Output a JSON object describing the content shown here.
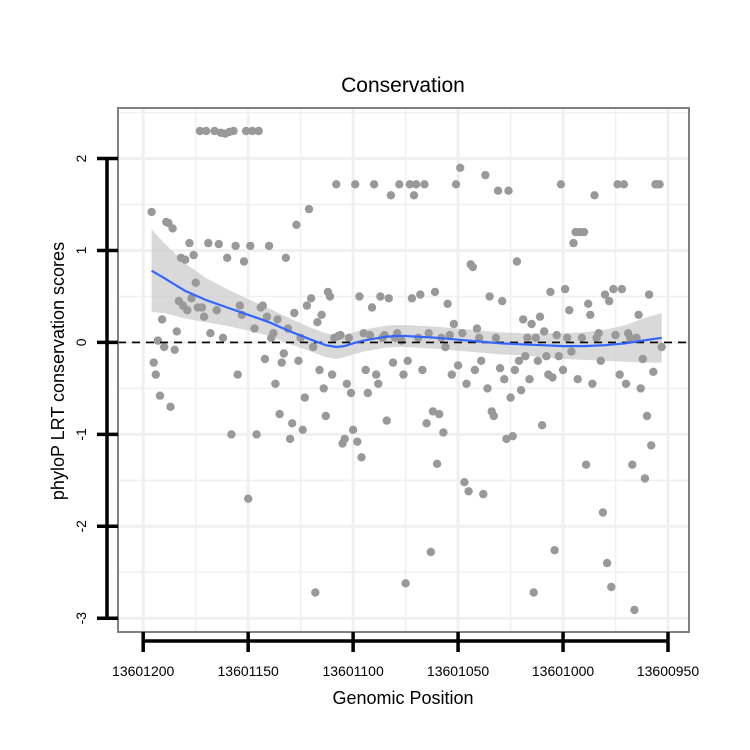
{
  "chart_data": {
    "type": "scatter",
    "title": "Conservation",
    "xlabel": "Genomic Position",
    "ylabel": "phyloP LRT conservation scores",
    "x_reversed": true,
    "xlim": [
      13601212,
      13600940
    ],
    "ylim": [
      -3.15,
      2.55
    ],
    "xticks": [
      13601200,
      13601150,
      13601100,
      13601050,
      13601000,
      13600950
    ],
    "xtick_labels": [
      "13601200",
      "13601150",
      "13601100",
      "13601050",
      "13601000",
      "13600950"
    ],
    "yticks": [
      -3,
      -2,
      -1,
      0,
      1,
      2
    ],
    "ytick_labels": [
      "-3",
      "-2",
      "-1",
      "0",
      "1",
      "2"
    ],
    "reference_line_y": 0,
    "grid": true,
    "colors": {
      "points": "#999999",
      "smooth_line": "#3366FF",
      "confidence_band": "#cccccc",
      "panel_border": "#808080",
      "grid": "#f0f0f0"
    },
    "points": [
      [
        13601196,
        1.42
      ],
      [
        13601195,
        -0.22
      ],
      [
        13601194,
        -0.35
      ],
      [
        13601193,
        0.02
      ],
      [
        13601192,
        -0.58
      ],
      [
        13601191,
        0.25
      ],
      [
        13601190,
        -0.05
      ],
      [
        13601189,
        1.31
      ],
      [
        13601188,
        1.3
      ],
      [
        13601187,
        -0.7
      ],
      [
        13601186,
        1.24
      ],
      [
        13601185,
        -0.08
      ],
      [
        13601184,
        0.12
      ],
      [
        13601183,
        0.45
      ],
      [
        13601182,
        0.92
      ],
      [
        13601181,
        0.4
      ],
      [
        13601180,
        0.9
      ],
      [
        13601179,
        0.35
      ],
      [
        13601178,
        1.08
      ],
      [
        13601177,
        0.48
      ],
      [
        13601176,
        0.95
      ],
      [
        13601175,
        0.65
      ],
      [
        13601174,
        0.38
      ],
      [
        13601173,
        2.3
      ],
      [
        13601172,
        0.38
      ],
      [
        13601171,
        0.28
      ],
      [
        13601170,
        2.3
      ],
      [
        13601169,
        1.08
      ],
      [
        13601168,
        0.1
      ],
      [
        13601166,
        2.3
      ],
      [
        13601165,
        0.35
      ],
      [
        13601164,
        1.07
      ],
      [
        13601163,
        2.28
      ],
      [
        13601162,
        0.05
      ],
      [
        13601161,
        2.27
      ],
      [
        13601160,
        0.92
      ],
      [
        13601159,
        2.29
      ],
      [
        13601158,
        -1.0
      ],
      [
        13601157,
        2.3
      ],
      [
        13601156,
        1.05
      ],
      [
        13601155,
        -0.35
      ],
      [
        13601154,
        0.4
      ],
      [
        13601153,
        0.3
      ],
      [
        13601152,
        0.88
      ],
      [
        13601151,
        2.3
      ],
      [
        13601150,
        -1.7
      ],
      [
        13601149,
        1.05
      ],
      [
        13601148,
        2.3
      ],
      [
        13601147,
        0.15
      ],
      [
        13601146,
        -1.0
      ],
      [
        13601145,
        2.3
      ],
      [
        13601144,
        0.38
      ],
      [
        13601143,
        0.4
      ],
      [
        13601142,
        -0.18
      ],
      [
        13601141,
        0.28
      ],
      [
        13601140,
        1.05
      ],
      [
        13601139,
        0.05
      ],
      [
        13601138,
        0.1
      ],
      [
        13601137,
        -0.45
      ],
      [
        13601136,
        0.25
      ],
      [
        13601135,
        -0.78
      ],
      [
        13601134,
        -0.22
      ],
      [
        13601133,
        -0.12
      ],
      [
        13601132,
        0.92
      ],
      [
        13601131,
        0.15
      ],
      [
        13601130,
        -1.05
      ],
      [
        13601129,
        -0.88
      ],
      [
        13601128,
        0.32
      ],
      [
        13601127,
        1.28
      ],
      [
        13601126,
        -0.2
      ],
      [
        13601125,
        0.05
      ],
      [
        13601124,
        -0.95
      ],
      [
        13601123,
        -0.6
      ],
      [
        13601122,
        0.4
      ],
      [
        13601121,
        1.45
      ],
      [
        13601120,
        0.48
      ],
      [
        13601119,
        -0.05
      ],
      [
        13601118,
        -2.72
      ],
      [
        13601117,
        0.22
      ],
      [
        13601116,
        -0.3
      ],
      [
        13601115,
        0.3
      ],
      [
        13601114,
        -0.5
      ],
      [
        13601113,
        -0.8
      ],
      [
        13601112,
        0.55
      ],
      [
        13601111,
        0.5
      ],
      [
        13601110,
        -0.35
      ],
      [
        13601109,
        0.05
      ],
      [
        13601108,
        1.72
      ],
      [
        13601107,
        0.07
      ],
      [
        13601106,
        0.08
      ],
      [
        13601105,
        -1.1
      ],
      [
        13601104,
        -1.05
      ],
      [
        13601103,
        -0.45
      ],
      [
        13601102,
        0.05
      ],
      [
        13601101,
        -0.55
      ],
      [
        13601100,
        -0.95
      ],
      [
        13601099,
        1.72
      ],
      [
        13601098,
        -1.08
      ],
      [
        13601097,
        0.5
      ],
      [
        13601096,
        -1.25
      ],
      [
        13601095,
        0.1
      ],
      [
        13601094,
        -0.3
      ],
      [
        13601093,
        -0.55
      ],
      [
        13601092,
        0.08
      ],
      [
        13601091,
        0.38
      ],
      [
        13601090,
        1.72
      ],
      [
        13601089,
        -0.35
      ],
      [
        13601088,
        -0.45
      ],
      [
        13601087,
        0.5
      ],
      [
        13601086,
        0.05
      ],
      [
        13601085,
        0.08
      ],
      [
        13601084,
        -0.85
      ],
      [
        13601083,
        0.48
      ],
      [
        13601082,
        1.6
      ],
      [
        13601081,
        -0.22
      ],
      [
        13601080,
        0.05
      ],
      [
        13601079,
        0.1
      ],
      [
        13601078,
        1.72
      ],
      [
        13601077,
        0.02
      ],
      [
        13601076,
        -0.35
      ],
      [
        13601075,
        -2.62
      ],
      [
        13601074,
        -0.2
      ],
      [
        13601073,
        1.72
      ],
      [
        13601072,
        0.48
      ],
      [
        13601071,
        1.6
      ],
      [
        13601070,
        1.72
      ],
      [
        13601069,
        0.05
      ],
      [
        13601068,
        0.52
      ],
      [
        13601067,
        -0.3
      ],
      [
        13601066,
        1.72
      ],
      [
        13601065,
        -0.88
      ],
      [
        13601064,
        0.1
      ],
      [
        13601063,
        -2.28
      ],
      [
        13601062,
        -0.75
      ],
      [
        13601061,
        0.55
      ],
      [
        13601060,
        -1.32
      ],
      [
        13601059,
        -0.78
      ],
      [
        13601058,
        0.05
      ],
      [
        13601057,
        -0.98
      ],
      [
        13601056,
        -0.05
      ],
      [
        13601055,
        0.42
      ],
      [
        13601054,
        0.08
      ],
      [
        13601053,
        -0.35
      ],
      [
        13601052,
        0.2
      ],
      [
        13601051,
        1.72
      ],
      [
        13601050,
        -0.25
      ],
      [
        13601049,
        1.9
      ],
      [
        13601048,
        0.1
      ],
      [
        13601047,
        -1.52
      ],
      [
        13601046,
        -0.45
      ],
      [
        13601045,
        -1.62
      ],
      [
        13601044,
        0.85
      ],
      [
        13601043,
        0.82
      ],
      [
        13601042,
        -0.3
      ],
      [
        13601041,
        0.15
      ],
      [
        13601040,
        0.05
      ],
      [
        13601039,
        -0.2
      ],
      [
        13601038,
        -1.65
      ],
      [
        13601037,
        1.82
      ],
      [
        13601036,
        -0.5
      ],
      [
        13601035,
        0.5
      ],
      [
        13601034,
        -0.75
      ],
      [
        13601033,
        -0.8
      ],
      [
        13601032,
        0.05
      ],
      [
        13601031,
        1.65
      ],
      [
        13601030,
        -0.28
      ],
      [
        13601029,
        0.45
      ],
      [
        13601028,
        -0.4
      ],
      [
        13601027,
        -1.05
      ],
      [
        13601026,
        1.65
      ],
      [
        13601025,
        -0.6
      ],
      [
        13601024,
        -1.02
      ],
      [
        13601023,
        -0.3
      ],
      [
        13601022,
        0.88
      ],
      [
        13601021,
        -0.2
      ],
      [
        13601020,
        -0.52
      ],
      [
        13601019,
        0.25
      ],
      [
        13601018,
        -0.15
      ],
      [
        13601017,
        0.05
      ],
      [
        13601016,
        -0.4
      ],
      [
        13601015,
        0.2
      ],
      [
        13601014,
        -2.72
      ],
      [
        13601013,
        0.05
      ],
      [
        13601012,
        -0.2
      ],
      [
        13601011,
        0.28
      ],
      [
        13601010,
        -0.9
      ],
      [
        13601009,
        0.12
      ],
      [
        13601008,
        -0.15
      ],
      [
        13601007,
        -0.35
      ],
      [
        13601006,
        0.55
      ],
      [
        13601005,
        -0.38
      ],
      [
        13601004,
        -2.26
      ],
      [
        13601003,
        0.08
      ],
      [
        13601002,
        -0.15
      ],
      [
        13601001,
        1.72
      ],
      [
        13601000,
        -0.3
      ],
      [
        13600999,
        0.58
      ],
      [
        13600998,
        0.05
      ],
      [
        13600997,
        0.35
      ],
      [
        13600996,
        -0.1
      ],
      [
        13600995,
        1.08
      ],
      [
        13600994,
        1.2
      ],
      [
        13600993,
        -0.4
      ],
      [
        13600992,
        1.2
      ],
      [
        13600991,
        0.05
      ],
      [
        13600990,
        1.2
      ],
      [
        13600989,
        -1.33
      ],
      [
        13600988,
        0.42
      ],
      [
        13600987,
        0.3
      ],
      [
        13600986,
        -0.45
      ],
      [
        13600985,
        1.6
      ],
      [
        13600984,
        0.05
      ],
      [
        13600983,
        0.1
      ],
      [
        13600982,
        -0.2
      ],
      [
        13600981,
        -1.85
      ],
      [
        13600980,
        0.52
      ],
      [
        13600979,
        -2.4
      ],
      [
        13600978,
        0.45
      ],
      [
        13600977,
        -2.66
      ],
      [
        13600976,
        0.58
      ],
      [
        13600975,
        0.08
      ],
      [
        13600974,
        1.72
      ],
      [
        13600973,
        -0.35
      ],
      [
        13600972,
        0.58
      ],
      [
        13600971,
        1.72
      ],
      [
        13600970,
        -0.45
      ],
      [
        13600969,
        0.1
      ],
      [
        13600968,
        0.05
      ],
      [
        13600967,
        -1.33
      ],
      [
        13600966,
        -2.91
      ],
      [
        13600965,
        0.05
      ],
      [
        13600964,
        0.3
      ],
      [
        13600963,
        -0.5
      ],
      [
        13600962,
        -0.18
      ],
      [
        13600961,
        -1.48
      ],
      [
        13600960,
        -0.8
      ],
      [
        13600959,
        0.52
      ],
      [
        13600958,
        -1.12
      ],
      [
        13600957,
        -0.32
      ],
      [
        13600956,
        1.72
      ],
      [
        13600955,
        1.72
      ],
      [
        13600954,
        1.72
      ],
      [
        13600953,
        -0.05
      ]
    ],
    "smooth": [
      [
        13601196,
        0.78
      ],
      [
        13601190,
        0.7
      ],
      [
        13601180,
        0.56
      ],
      [
        13601170,
        0.46
      ],
      [
        13601160,
        0.38
      ],
      [
        13601150,
        0.3
      ],
      [
        13601140,
        0.22
      ],
      [
        13601130,
        0.12
      ],
      [
        13601120,
        0.03
      ],
      [
        13601113,
        -0.03
      ],
      [
        13601108,
        -0.05
      ],
      [
        13601104,
        -0.04
      ],
      [
        13601100,
        -0.01
      ],
      [
        13601095,
        0.02
      ],
      [
        13601090,
        0.04
      ],
      [
        13601085,
        0.06
      ],
      [
        13601080,
        0.07
      ],
      [
        13601075,
        0.07
      ],
      [
        13601068,
        0.06
      ],
      [
        13601060,
        0.05
      ],
      [
        13601050,
        0.03
      ],
      [
        13601040,
        0.01
      ],
      [
        13601030,
        -0.01
      ],
      [
        13601020,
        -0.02
      ],
      [
        13601010,
        -0.03
      ],
      [
        13601000,
        -0.04
      ],
      [
        13600990,
        -0.04
      ],
      [
        13600980,
        -0.03
      ],
      [
        13600970,
        -0.01
      ],
      [
        13600962,
        0.02
      ],
      [
        13600953,
        0.05
      ]
    ],
    "band_halfwidth": [
      0.45,
      0.38,
      0.3,
      0.24,
      0.2,
      0.17,
      0.15,
      0.14,
      0.13,
      0.13,
      0.13,
      0.12,
      0.12,
      0.12,
      0.12,
      0.12,
      0.12,
      0.12,
      0.12,
      0.12,
      0.12,
      0.12,
      0.12,
      0.12,
      0.13,
      0.14,
      0.15,
      0.17,
      0.2,
      0.24,
      0.27
    ]
  }
}
